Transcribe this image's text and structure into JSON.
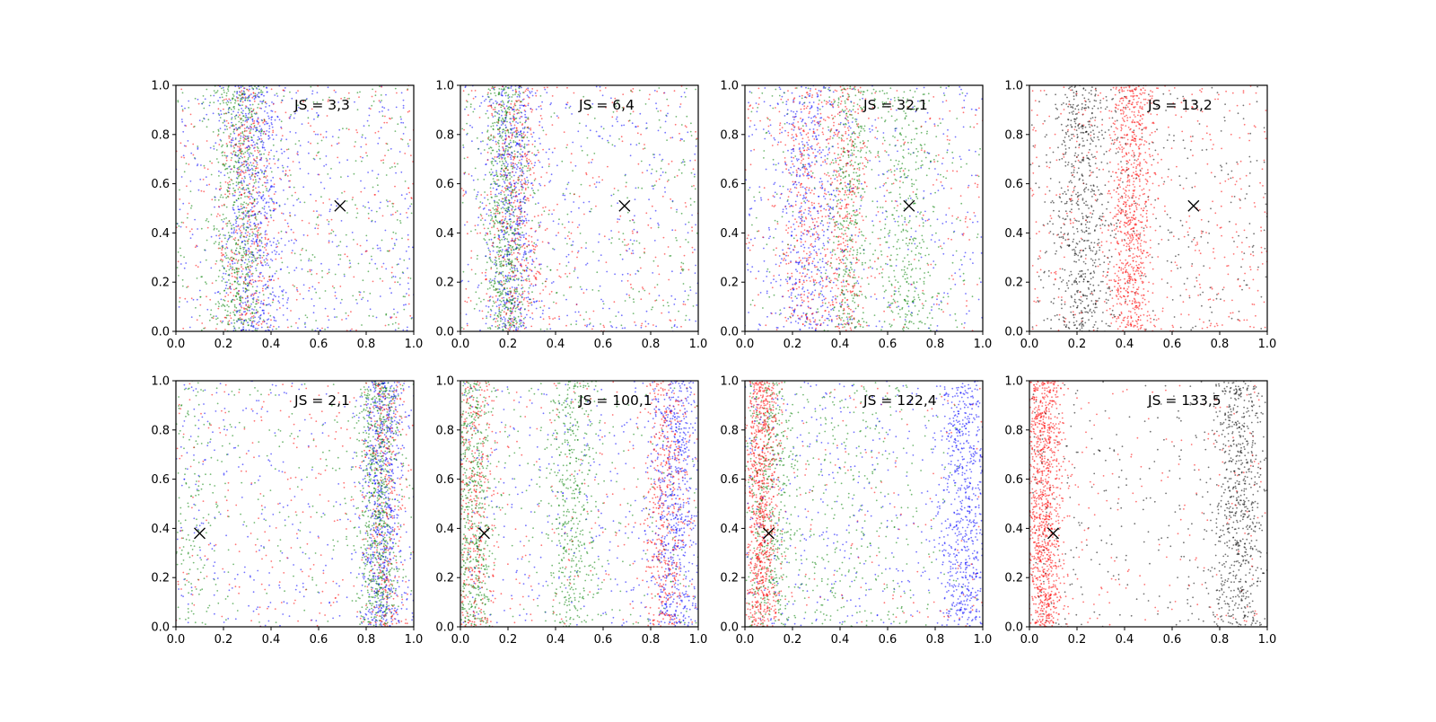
{
  "chart_data": [
    {
      "type": "scatter",
      "annotation": "JS = 3,3",
      "xlim": [
        0,
        1
      ],
      "ylim": [
        0,
        1
      ],
      "marker": {
        "symbol": "x",
        "x": 0.69,
        "y": 0.51
      },
      "series": [
        {
          "color": "#0000ff",
          "points_per_band": [
            [
              0.33,
              0.06,
              600
            ],
            [
              0.55,
              0.3,
              400
            ]
          ]
        },
        {
          "color": "#008000",
          "points_per_band": [
            [
              0.27,
              0.05,
              600
            ],
            [
              0.5,
              0.3,
              350
            ]
          ]
        },
        {
          "color": "#ff0000",
          "points_per_band": [
            [
              0.3,
              0.06,
              350
            ],
            [
              0.5,
              0.3,
              300
            ]
          ]
        }
      ]
    },
    {
      "type": "scatter",
      "annotation": "JS = 6,4",
      "xlim": [
        0,
        1
      ],
      "ylim": [
        0,
        1
      ],
      "marker": {
        "symbol": "x",
        "x": 0.69,
        "y": 0.51
      },
      "series": [
        {
          "color": "#0000ff",
          "points_per_band": [
            [
              0.22,
              0.05,
              550
            ],
            [
              0.5,
              0.3,
              350
            ]
          ]
        },
        {
          "color": "#008000",
          "points_per_band": [
            [
              0.19,
              0.04,
              650
            ],
            [
              0.5,
              0.3,
              300
            ]
          ]
        },
        {
          "color": "#ff0000",
          "points_per_band": [
            [
              0.24,
              0.06,
              400
            ],
            [
              0.5,
              0.3,
              300
            ]
          ]
        }
      ]
    },
    {
      "type": "scatter",
      "annotation": "JS = 32,1",
      "xlim": [
        0,
        1
      ],
      "ylim": [
        0,
        1
      ],
      "marker": {
        "symbol": "x",
        "x": 0.69,
        "y": 0.51
      },
      "series": [
        {
          "color": "#0000ff",
          "points_per_band": [
            [
              0.27,
              0.07,
              450
            ],
            [
              0.5,
              0.3,
              350
            ]
          ]
        },
        {
          "color": "#008000",
          "points_per_band": [
            [
              0.44,
              0.04,
              350
            ],
            [
              0.68,
              0.06,
              350
            ],
            [
              0.5,
              0.3,
              250
            ]
          ]
        },
        {
          "color": "#ff0000",
          "points_per_band": [
            [
              0.25,
              0.05,
              300
            ],
            [
              0.42,
              0.04,
              350
            ],
            [
              0.5,
              0.3,
              250
            ]
          ]
        }
      ]
    },
    {
      "type": "scatter",
      "annotation": "JS = 13,2",
      "xlim": [
        0,
        1
      ],
      "ylim": [
        0,
        1
      ],
      "marker": {
        "symbol": "x",
        "x": 0.69,
        "y": 0.51
      },
      "series": [
        {
          "color": "#000000",
          "points_per_band": [
            [
              0.22,
              0.06,
              600
            ],
            [
              0.5,
              0.3,
              300
            ]
          ]
        },
        {
          "color": "#ff0000",
          "points_per_band": [
            [
              0.43,
              0.04,
              800
            ],
            [
              0.5,
              0.3,
              450
            ]
          ]
        }
      ]
    },
    {
      "type": "scatter",
      "annotation": "JS = 2,1",
      "xlim": [
        0,
        1
      ],
      "ylim": [
        0,
        1
      ],
      "marker": {
        "symbol": "x",
        "x": 0.1,
        "y": 0.38
      },
      "series": [
        {
          "color": "#0000ff",
          "points_per_band": [
            [
              0.87,
              0.04,
              650
            ],
            [
              0.5,
              0.3,
              300
            ]
          ]
        },
        {
          "color": "#008000",
          "points_per_band": [
            [
              0.85,
              0.035,
              700
            ],
            [
              0.06,
              0.05,
              150
            ],
            [
              0.5,
              0.3,
              200
            ]
          ]
        },
        {
          "color": "#ff0000",
          "points_per_band": [
            [
              0.88,
              0.04,
              300
            ],
            [
              0.5,
              0.3,
              250
            ]
          ]
        }
      ]
    },
    {
      "type": "scatter",
      "annotation": "JS = 100,1",
      "xlim": [
        0,
        1
      ],
      "ylim": [
        0,
        1
      ],
      "marker": {
        "symbol": "x",
        "x": 0.1,
        "y": 0.38
      },
      "series": [
        {
          "color": "#0000ff",
          "points_per_band": [
            [
              0.9,
              0.05,
              650
            ],
            [
              0.5,
              0.3,
              300
            ]
          ]
        },
        {
          "color": "#008000",
          "points_per_band": [
            [
              0.05,
              0.04,
              550
            ],
            [
              0.47,
              0.05,
              450
            ],
            [
              0.5,
              0.3,
              200
            ]
          ]
        },
        {
          "color": "#ff0000",
          "points_per_band": [
            [
              0.06,
              0.04,
              350
            ],
            [
              0.86,
              0.04,
              450
            ],
            [
              0.5,
              0.3,
              200
            ]
          ]
        }
      ]
    },
    {
      "type": "scatter",
      "annotation": "JS = 122,4",
      "xlim": [
        0,
        1
      ],
      "ylim": [
        0,
        1
      ],
      "marker": {
        "symbol": "x",
        "x": 0.1,
        "y": 0.38
      },
      "series": [
        {
          "color": "#0000ff",
          "points_per_band": [
            [
              0.92,
              0.05,
              650
            ],
            [
              0.6,
              0.25,
              400
            ]
          ]
        },
        {
          "color": "#008000",
          "points_per_band": [
            [
              0.1,
              0.05,
              450
            ],
            [
              0.45,
              0.2,
              400
            ]
          ]
        },
        {
          "color": "#ff0000",
          "points_per_band": [
            [
              0.07,
              0.03,
              900
            ],
            [
              0.5,
              0.3,
              150
            ]
          ]
        }
      ]
    },
    {
      "type": "scatter",
      "annotation": "JS = 133,5",
      "xlim": [
        0,
        1
      ],
      "ylim": [
        0,
        1
      ],
      "marker": {
        "symbol": "x",
        "x": 0.1,
        "y": 0.38
      },
      "series": [
        {
          "color": "#000000",
          "points_per_band": [
            [
              0.88,
              0.05,
              650
            ],
            [
              0.5,
              0.3,
              300
            ]
          ]
        },
        {
          "color": "#ff0000",
          "points_per_band": [
            [
              0.06,
              0.035,
              1100
            ],
            [
              0.5,
              0.3,
              200
            ]
          ]
        }
      ]
    }
  ],
  "axes": {
    "x_ticks": [
      "0.0",
      "0.2",
      "0.4",
      "0.6",
      "0.8",
      "1.0"
    ],
    "y_ticks": [
      "0.0",
      "0.2",
      "0.4",
      "0.6",
      "0.8",
      "1.0"
    ]
  }
}
